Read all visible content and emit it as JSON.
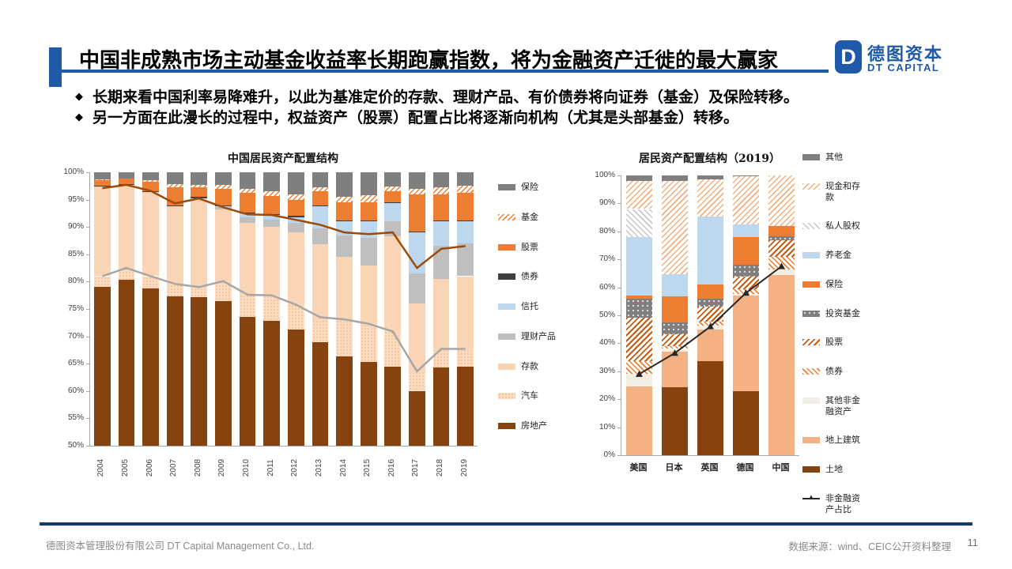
{
  "slide": {
    "title": "中国非成熟市场主动基金收益率长期跑赢指数，将为金融资产迁徙的最大赢家",
    "bullet_marker": "◆",
    "bullets": [
      "长期来看中国利率易降难升，以此为基准定价的存款、理财产品、有价债券将向证券（基金）及保险转移。",
      "另一方面在此漫长的过程中，权益资产（股票）配置占比将逐渐向机构（尤其是头部基金）转移。"
    ],
    "logo": {
      "mark": "D",
      "name_cn": "德图资本",
      "name_en": "DT CAPITAL"
    },
    "footer": {
      "company": "德图资本管理股份有限公司  DT Capital Management Co., Ltd.",
      "source": "数据来源：wind、CEIC公开资料整理",
      "page": "11"
    },
    "colors": {
      "accent_blue": "#1E5AA8",
      "footer_navy": "#16396B",
      "orange": "#ED7D31",
      "dark_brown": "#87430F",
      "peach": "#FAD5B5",
      "light_blue": "#BDD7EE",
      "gray": "#7F7F7F",
      "text_gray": "#8A8A8A"
    }
  },
  "chart_data": [
    {
      "type": "bar",
      "stacked": true,
      "title": "中国居民资产配置结构",
      "xlabel": "",
      "ylabel": "",
      "ylim": [
        50,
        100
      ],
      "ystep": 5,
      "y_format": "percent",
      "grid": false,
      "legend_position": "right",
      "categories": [
        "2004",
        "2005",
        "2006",
        "2007",
        "2008",
        "2009",
        "2010",
        "2011",
        "2012",
        "2013",
        "2014",
        "2015",
        "2016",
        "2017",
        "2018",
        "2019"
      ],
      "series": [
        {
          "name": "房地产",
          "key": "house",
          "color": "#87430F",
          "values": [
            79.0,
            80.3,
            78.7,
            77.3,
            77.2,
            76.4,
            73.5,
            72.9,
            71.2,
            69.0,
            66.3,
            65.3,
            64.5,
            60.0,
            64.3,
            64.5
          ]
        },
        {
          "name": "汽车",
          "key": "car",
          "color": "#E88A43",
          "values": [
            2.0,
            2.2,
            2.3,
            2.2,
            1.7,
            3.6,
            4.1,
            4.6,
            4.6,
            4.0,
            6.7,
            7.0,
            6.4,
            3.6,
            3.4,
            3.2
          ]
        },
        {
          "name": "存款",
          "key": "deposit",
          "color": "#FAD5B5",
          "values": [
            16.4,
            15.2,
            15.4,
            14.3,
            16.4,
            13.2,
            13.2,
            12.6,
            13.2,
            13.9,
            11.5,
            10.7,
            17.4,
            12.4,
            12.8,
            13.3
          ]
        },
        {
          "name": "理财产品",
          "key": "wmp",
          "color": "#BFBFBF",
          "values": [
            0,
            0,
            0,
            0,
            0,
            0.4,
            0.9,
            1.2,
            1.7,
            2.9,
            4.0,
            5.0,
            2.7,
            5.5,
            6.0,
            6.0
          ]
        },
        {
          "name": "信托",
          "key": "trust",
          "color": "#BDD7EE",
          "values": [
            0,
            0,
            0,
            0,
            0,
            0.2,
            0.8,
            0.9,
            1.1,
            4.0,
            2.5,
            3.0,
            3.3,
            7.5,
            4.5,
            4.0
          ]
        },
        {
          "name": "债券",
          "key": "bond",
          "color": "#3F3F3F",
          "values": [
            0.1,
            0.1,
            0.2,
            0.2,
            0.2,
            0.2,
            0.2,
            0.2,
            0.2,
            0.2,
            0.2,
            0.2,
            0.2,
            0.2,
            0.2,
            0.2
          ]
        },
        {
          "name": "股票",
          "key": "stock",
          "color": "#ED7D31",
          "values": [
            1.1,
            1.0,
            1.7,
            3.2,
            1.8,
            2.9,
            3.6,
            3.3,
            3.0,
            2.5,
            3.3,
            3.3,
            2.1,
            6.8,
            4.8,
            5.1
          ]
        },
        {
          "name": "基金",
          "key": "fund",
          "color": "#ED7D31",
          "values": [
            0.1,
            0.1,
            0.2,
            0.6,
            0.4,
            0.8,
            0.7,
            0.9,
            1.0,
            0.8,
            1.0,
            1.3,
            0.8,
            1.0,
            1.2,
            1.2
          ]
        },
        {
          "name": "保险",
          "key": "insurance",
          "color": "#7F7F7F",
          "values": [
            1.3,
            1.1,
            1.5,
            2.2,
            2.3,
            2.3,
            3.0,
            3.4,
            4.0,
            2.7,
            4.5,
            4.2,
            2.6,
            3.0,
            2.8,
            2.5
          ]
        }
      ],
      "lines": [
        {
          "name": "金融资产边界线",
          "key": "line-brown",
          "color": "#9C4A08",
          "width": 2.5,
          "values": [
            97.1,
            97.7,
            96.6,
            94.3,
            95.2,
            93.6,
            92.3,
            92.2,
            91.3,
            90.4,
            89.0,
            88.7,
            89.0,
            82.5,
            86.0,
            86.5
          ]
        },
        {
          "name": "实物资产边界线",
          "key": "line-gray",
          "color": "#A6A6A6",
          "width": 2.5,
          "values": [
            81.0,
            82.5,
            81.0,
            79.6,
            79.0,
            80.1,
            77.6,
            77.5,
            75.8,
            73.5,
            73.1,
            72.3,
            70.9,
            63.6,
            67.7,
            67.7
          ]
        }
      ],
      "legend": [
        {
          "name": "保险",
          "key": "insurance"
        },
        {
          "name": "基金",
          "key": "fund"
        },
        {
          "name": "股票",
          "key": "stock"
        },
        {
          "name": "债券",
          "key": "bond"
        },
        {
          "name": "信托",
          "key": "trust"
        },
        {
          "name": "理财产品",
          "key": "wmp"
        },
        {
          "name": "存款",
          "key": "deposit"
        },
        {
          "name": "汽车",
          "key": "car"
        },
        {
          "name": "房地产",
          "key": "house"
        }
      ]
    },
    {
      "type": "bar",
      "stacked": true,
      "title": "居民资产配置结构（2019）",
      "xlabel": "",
      "ylabel": "",
      "ylim": [
        0,
        100
      ],
      "ystep": 10,
      "y_format": "percent",
      "grid": false,
      "legend_position": "right",
      "categories": [
        "美国",
        "日本",
        "英国",
        "德国",
        "中国"
      ],
      "series": [
        {
          "name": "土地",
          "key": "land",
          "color": "#87430F",
          "values": [
            0,
            24.3,
            33.5,
            22.8,
            0
          ]
        },
        {
          "name": "地上建筑",
          "key": "building",
          "color": "#F4B183",
          "values": [
            24.5,
            12.7,
            11.5,
            34.2,
            64.5
          ]
        },
        {
          "name": "其他非金融资产",
          "key": "othernf",
          "color": "#F1EFE4",
          "values": [
            4.5,
            1.0,
            1.2,
            0.5,
            2.0
          ]
        },
        {
          "name": "债券",
          "key": "bond2",
          "color": "#ED7D31",
          "values": [
            4.5,
            1.0,
            1.5,
            1.8,
            4.5
          ]
        },
        {
          "name": "股票",
          "key": "stock2",
          "color": "#C55A11",
          "values": [
            15.7,
            4.2,
            5.4,
            4.5,
            5.8
          ]
        },
        {
          "name": "投资基金",
          "key": "ifund",
          "color": "#7F7F7F",
          "values": [
            6.7,
            4.3,
            2.8,
            4.2,
            1.4
          ]
        },
        {
          "name": "保险",
          "key": "ins2",
          "color": "#ED7D31",
          "values": [
            1.1,
            9.3,
            5.1,
            10.0,
            3.7
          ]
        },
        {
          "name": "养老金",
          "key": "pension",
          "color": "#BDD7EE",
          "values": [
            21.0,
            7.9,
            24.3,
            4.5,
            0
          ]
        },
        {
          "name": "私人股权",
          "key": "pe",
          "color": "#C6C6C6",
          "values": [
            10.0,
            0,
            0,
            0,
            0
          ]
        },
        {
          "name": "现金和存款",
          "key": "cash",
          "color": "#F3AE7C",
          "values": [
            10.0,
            33.3,
            13.2,
            17.3,
            18.1
          ]
        },
        {
          "name": "其他",
          "key": "other",
          "color": "#7F7F7F",
          "values": [
            2.0,
            2.0,
            1.5,
            0.2,
            0
          ]
        }
      ],
      "lines": [
        {
          "name": "非金融资产占比",
          "key": "nonfin-line",
          "color": "#262626",
          "width": 2,
          "marker": "triangle",
          "values": [
            29,
            36.5,
            46,
            58,
            67.5
          ]
        }
      ],
      "legend": [
        {
          "name": "其他",
          "key": "other"
        },
        {
          "name": "现金和存款",
          "key": "cash"
        },
        {
          "name": "私人股权",
          "key": "pe"
        },
        {
          "name": "养老金",
          "key": "pension"
        },
        {
          "name": "保险",
          "key": "ins2"
        },
        {
          "name": "投资基金",
          "key": "ifund"
        },
        {
          "name": "股票",
          "key": "stock2"
        },
        {
          "name": "债券",
          "key": "bond2"
        },
        {
          "name": "其他非金融资产",
          "key": "othernf"
        },
        {
          "name": "地上建筑",
          "key": "building"
        },
        {
          "name": "土地",
          "key": "land"
        },
        {
          "name": "非金融资产占比",
          "key": "nonfin-line",
          "type": "line"
        }
      ]
    }
  ]
}
